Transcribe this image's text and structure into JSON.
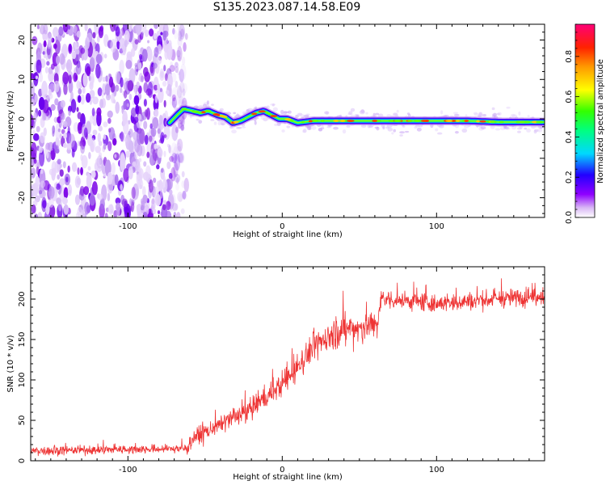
{
  "title": "S135.2023.087.14.58.E09",
  "chart_data": [
    {
      "type": "heatmap",
      "xlabel": "Height of straight line (km)",
      "ylabel": "Frequency (Hz)",
      "xlim": [
        -163,
        170
      ],
      "ylim": [
        -25,
        24
      ],
      "xticks": [
        -100,
        0,
        100
      ],
      "yticks": [
        -20,
        -10,
        0,
        10,
        20
      ],
      "colorbar": {
        "label": "Normalized spectral amplitude",
        "range": [
          0,
          0.96
        ],
        "ticks": [
          "0.0",
          "0.2",
          "0.4",
          "0.6",
          "0.8"
        ]
      },
      "noise_region_x": [
        -163,
        -72
      ],
      "ridge": {
        "x": [
          -73,
          -68,
          -64,
          -58,
          -53,
          -48,
          -42,
          -37,
          -32,
          -27,
          -22,
          -17,
          -12,
          -7,
          -2,
          3,
          10,
          20,
          30,
          45,
          60,
          80,
          100,
          120,
          140,
          170
        ],
        "y": [
          -1,
          1,
          2.5,
          2,
          1.5,
          2,
          1,
          0.5,
          -1,
          -0.5,
          0.5,
          1.5,
          2,
          1,
          0,
          0,
          -1,
          -0.5,
          -0.5,
          -0.5,
          -0.5,
          -0.5,
          -0.5,
          -0.5,
          -0.8,
          -0.8
        ]
      }
    },
    {
      "type": "line",
      "xlabel": "Height of straight line (km)",
      "ylabel": "SNR (10 * v/v)",
      "xlim": [
        -163,
        170
      ],
      "ylim": [
        0,
        240
      ],
      "xticks": [
        -100,
        0,
        100
      ],
      "yticks": [
        0,
        50,
        100,
        150,
        200
      ],
      "color": "#ee3333",
      "trend": {
        "x": [
          -163,
          -100,
          -62,
          -58,
          -40,
          -20,
          0,
          20,
          35,
          50,
          62,
          64,
          100,
          140,
          170
        ],
        "y": [
          12,
          14,
          15,
          28,
          45,
          65,
          95,
          140,
          160,
          165,
          170,
          200,
          195,
          200,
          205
        ]
      }
    }
  ]
}
